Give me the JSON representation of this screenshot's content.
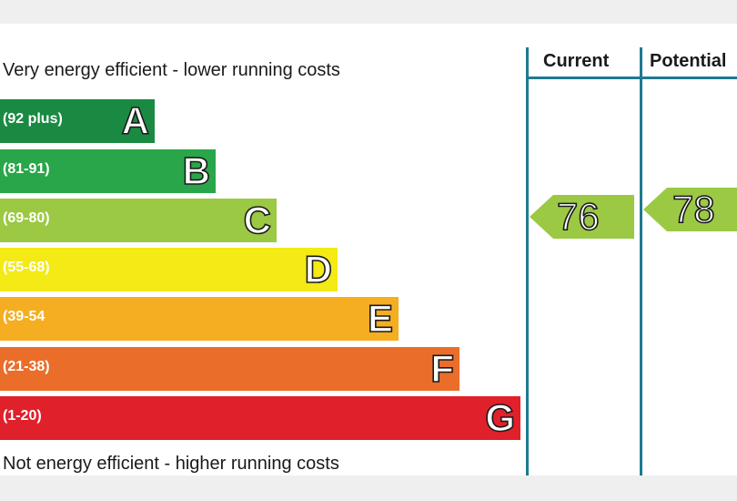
{
  "chart_data": {
    "type": "epc-rating",
    "top_caption": "Very energy efficient - lower running costs",
    "bottom_caption": "Not energy efficient - higher running costs",
    "columns": [
      "Current",
      "Potential"
    ],
    "bands": [
      {
        "letter": "A",
        "range": "(92 plus)",
        "color": "#1a8a43"
      },
      {
        "letter": "B",
        "range": "(81-91)",
        "color": "#2aa64a"
      },
      {
        "letter": "C",
        "range": "(69-80)",
        "color": "#9bc943"
      },
      {
        "letter": "D",
        "range": "(55-68)",
        "color": "#f3ea16"
      },
      {
        "letter": "E",
        "range": "(39-54",
        "color": "#f5ae21"
      },
      {
        "letter": "F",
        "range": "(21-38)",
        "color": "#ea6d2a"
      },
      {
        "letter": "G",
        "range": "(1-20)",
        "color": "#e0202a"
      }
    ],
    "ratings": [
      {
        "column": "Current",
        "value": "76",
        "band": "C",
        "color": "#9bc943"
      },
      {
        "column": "Potential",
        "value": "78",
        "band": "C",
        "color": "#9bc943"
      }
    ]
  }
}
